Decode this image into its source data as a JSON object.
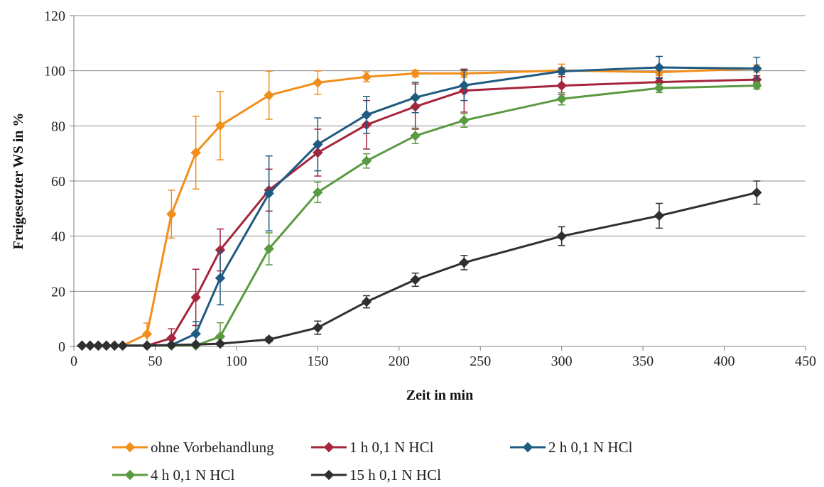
{
  "chart_data": {
    "type": "line",
    "title": "",
    "xlabel": "Zeit in min",
    "ylabel": "Freigesetzter WS in %",
    "xlim": [
      0,
      450
    ],
    "ylim": [
      0,
      120
    ],
    "xticks": [
      0,
      50,
      100,
      150,
      200,
      250,
      300,
      350,
      400,
      450
    ],
    "yticks": [
      0,
      20,
      40,
      60,
      80,
      100,
      120
    ],
    "x_tick_labels": [
      "0",
      "50",
      "100",
      "150",
      "200",
      "250",
      "300",
      "350",
      "400",
      "450"
    ],
    "y_tick_labels": [
      "0",
      "20",
      "40",
      "60",
      "80",
      "100",
      "120"
    ],
    "grid": "horizontal",
    "legend_position": "bottom",
    "x": [
      5,
      10,
      15,
      20,
      25,
      30,
      45,
      60,
      75,
      90,
      120,
      150,
      180,
      210,
      240,
      300,
      360,
      420
    ],
    "series": [
      {
        "name": "ohne Vorbehandlung",
        "color": "#F28E1C",
        "values": [
          0.3,
          0.3,
          0.3,
          0.3,
          0.3,
          0.3,
          4.5,
          48,
          70.3,
          80.1,
          91.1,
          95.7,
          97.8,
          99,
          99,
          100.1,
          99.5,
          100.8
        ],
        "errors": [
          0,
          0,
          0,
          0,
          0,
          0,
          4,
          8.7,
          13.2,
          12.4,
          8.7,
          4.2,
          1.8,
          1.2,
          1.4,
          2.3,
          1.2,
          1.3
        ]
      },
      {
        "name": "1 h 0,1 N HCl",
        "color": "#A6243C",
        "values": [
          0.3,
          0.3,
          0.3,
          0.3,
          0.3,
          0.3,
          0.3,
          3,
          17.8,
          35,
          56.7,
          70.3,
          80.4,
          87,
          92.8,
          94.6,
          95.9,
          96.8
        ],
        "errors": [
          0,
          0,
          0,
          0,
          0,
          0,
          0,
          3.4,
          10.2,
          7.6,
          7.6,
          8.5,
          8.8,
          8.2,
          7.8,
          3.3,
          1.6,
          1.4
        ]
      },
      {
        "name": "2 h 0,1 N HCl",
        "color": "#1F5A80",
        "values": [
          0.3,
          0.3,
          0.3,
          0.3,
          0.3,
          0.3,
          0.3,
          0.5,
          4.6,
          24.8,
          55.5,
          73.3,
          84,
          90.3,
          94.7,
          99.8,
          101.2,
          100.8
        ],
        "errors": [
          0,
          0,
          0,
          0,
          0,
          0,
          0,
          0.6,
          4.4,
          9.7,
          13.6,
          9.6,
          6.7,
          5.5,
          5.5,
          1.2,
          4,
          4.1
        ]
      },
      {
        "name": "4 h 0,1 N HCl",
        "color": "#5A9A42",
        "values": [
          0.3,
          0.3,
          0.3,
          0.3,
          0.3,
          0.3,
          0.3,
          0.3,
          0.3,
          3.6,
          35.4,
          55.9,
          67.3,
          76.4,
          82,
          89.8,
          93.7,
          94.6
        ],
        "errors": [
          0,
          0,
          0,
          0,
          0,
          0,
          0,
          0,
          0,
          5,
          5.8,
          3.7,
          2.6,
          2.8,
          2.5,
          2.2,
          1.6,
          1.2
        ]
      },
      {
        "name": "15 h 0,1 N HCl",
        "color": "#2F2F2F",
        "values": [
          0.3,
          0.3,
          0.3,
          0.3,
          0.3,
          0.3,
          0.3,
          0.5,
          0.7,
          1,
          2.5,
          6.8,
          16.2,
          24.2,
          30.4,
          40,
          47.4,
          55.8
        ],
        "errors": [
          0,
          0,
          0,
          0,
          0,
          0,
          0,
          0,
          0,
          0,
          0.8,
          2.4,
          2.2,
          2.4,
          2.6,
          3.4,
          4.5,
          4.2
        ]
      }
    ]
  }
}
